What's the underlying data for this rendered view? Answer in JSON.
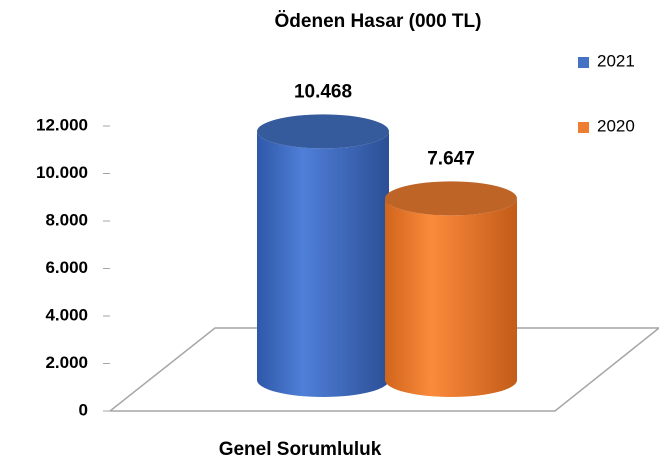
{
  "chart_data": {
    "type": "cylinder",
    "title": "Ödenen Hasar (000 TL)",
    "categories": [
      "Genel Sorumluluk"
    ],
    "series": [
      {
        "name": "2021",
        "color": "#4472c4",
        "values": [
          10468
        ],
        "value_labels": [
          "10.468"
        ]
      },
      {
        "name": "2020",
        "color": "#ed7d31",
        "values": [
          7647
        ],
        "value_labels": [
          "7.647"
        ]
      }
    ],
    "ylim": [
      0,
      12000
    ],
    "yticks": [
      0,
      {
        "value": 2000,
        "label": "2.000"
      },
      {
        "value": 4000,
        "label": "4.000"
      },
      {
        "value": 6000,
        "label": "6.000"
      },
      {
        "value": 8000,
        "label": "8.000"
      },
      {
        "value": 10000,
        "label": "10.000"
      },
      {
        "value": 12000,
        "label": "12.000"
      }
    ],
    "legend": "right",
    "grid": false
  }
}
